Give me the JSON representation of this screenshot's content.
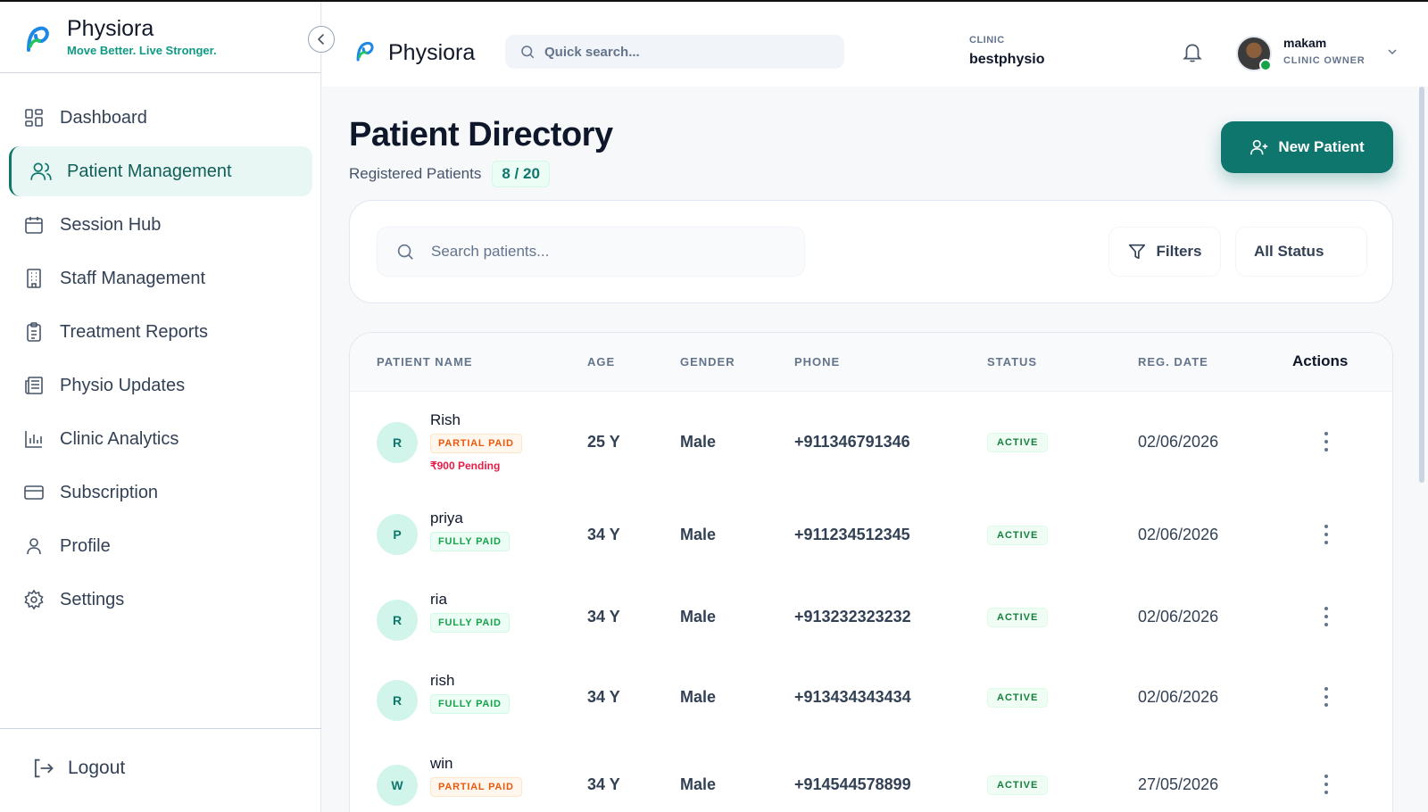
{
  "sidebar": {
    "brand": "Physiora",
    "tagline": "Move Better. Live Stronger.",
    "items": [
      {
        "label": "Dashboard",
        "icon": "dashboard-icon"
      },
      {
        "label": "Patient Management",
        "icon": "users-icon",
        "active": true
      },
      {
        "label": "Session Hub",
        "icon": "calendar-icon"
      },
      {
        "label": "Staff Management",
        "icon": "building-icon"
      },
      {
        "label": "Treatment Reports",
        "icon": "clipboard-icon"
      },
      {
        "label": "Physio Updates",
        "icon": "newspaper-icon"
      },
      {
        "label": "Clinic Analytics",
        "icon": "bar-chart-icon"
      },
      {
        "label": "Subscription",
        "icon": "credit-card-icon"
      },
      {
        "label": "Profile",
        "icon": "user-icon"
      },
      {
        "label": "Settings",
        "icon": "gear-icon"
      }
    ],
    "logout": "Logout"
  },
  "header": {
    "brand": "Physiora",
    "search_placeholder": "Quick search...",
    "clinic_label": "CLINIC",
    "clinic_name": "bestphysio",
    "user_name": "makam",
    "user_role": "CLINIC OWNER"
  },
  "page": {
    "title": "Patient Directory",
    "subtitle": "Registered Patients",
    "count": "8 / 20",
    "new_button": "New Patient"
  },
  "filters": {
    "search_placeholder": "Search patients...",
    "filters_label": "Filters",
    "status_label": "All Status"
  },
  "table": {
    "headers": {
      "name": "PATIENT NAME",
      "age": "AGE",
      "gender": "GENDER",
      "phone": "PHONE",
      "status": "STATUS",
      "date": "REG. DATE",
      "actions": "Actions"
    },
    "rows": [
      {
        "initial": "R",
        "name": "Rish",
        "payment": "PARTIAL PAID",
        "pending": "₹900 Pending",
        "age": "25 Y",
        "gender": "Male",
        "phone": "+911346791346",
        "status": "ACTIVE",
        "date": "02/06/2026"
      },
      {
        "initial": "P",
        "name": "priya",
        "payment": "FULLY PAID",
        "age": "34 Y",
        "gender": "Male",
        "phone": "+911234512345",
        "status": "ACTIVE",
        "date": "02/06/2026"
      },
      {
        "initial": "R",
        "name": "ria",
        "payment": "FULLY PAID",
        "age": "34 Y",
        "gender": "Male",
        "phone": "+913232323232",
        "status": "ACTIVE",
        "date": "02/06/2026"
      },
      {
        "initial": "R",
        "name": "rish",
        "payment": "FULLY PAID",
        "age": "34 Y",
        "gender": "Male",
        "phone": "+913434343434",
        "status": "ACTIVE",
        "date": "02/06/2026"
      },
      {
        "initial": "W",
        "name": "win",
        "payment": "PARTIAL PAID",
        "age": "34 Y",
        "gender": "Male",
        "phone": "+914544578899",
        "status": "ACTIVE",
        "date": "27/05/2026"
      }
    ]
  },
  "colors": {
    "accent": "#0f766e",
    "active_nav_bg": "#e8f7f3",
    "partial": "#ea580c",
    "full": "#16a34a",
    "pending": "#e11d48"
  }
}
